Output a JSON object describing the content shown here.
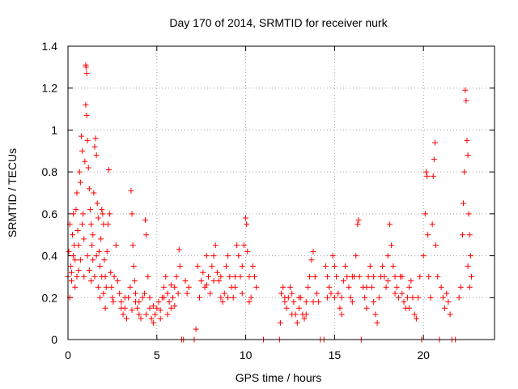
{
  "chart_data": {
    "type": "scatter",
    "title": "Day 170 of 2014, SRMTID for receiver nurk",
    "xlabel": "GPS time / hours",
    "ylabel": "SRMTID / TECUs",
    "xlim": [
      0,
      24
    ],
    "ylim": [
      0,
      1.4
    ],
    "xticks": [
      0,
      5,
      10,
      15,
      20
    ],
    "xtick_labels": [
      "0",
      "5",
      "10",
      "15",
      "20"
    ],
    "yticks": [
      0,
      0.2,
      0.4,
      0.6,
      0.8,
      1,
      1.2,
      1.4
    ],
    "ytick_labels": [
      "0",
      "0.2",
      "0.4",
      "0.6",
      "0.8",
      "1",
      "1.2",
      "1.4"
    ],
    "grid": true,
    "marker": "+",
    "series": [
      {
        "name": "SRMTID",
        "color": "#ff0000",
        "points": [
          [
            0.0,
            0.3
          ],
          [
            0.05,
            0.42
          ],
          [
            0.1,
            0.55
          ],
          [
            0.15,
            0.35
          ],
          [
            0.2,
            0.28
          ],
          [
            0.25,
            0.5
          ],
          [
            0.3,
            0.6
          ],
          [
            0.35,
            0.45
          ],
          [
            0.4,
            0.38
          ],
          [
            0.45,
            0.62
          ],
          [
            0.5,
            0.7
          ],
          [
            0.55,
            0.52
          ],
          [
            0.6,
            0.33
          ],
          [
            0.65,
            0.8
          ],
          [
            0.7,
            0.75
          ],
          [
            0.75,
            0.97
          ],
          [
            0.8,
            0.9
          ],
          [
            0.85,
            0.6
          ],
          [
            0.9,
            0.48
          ],
          [
            0.95,
            0.85
          ],
          [
            1.0,
            1.31
          ],
          [
            1.02,
            1.3
          ],
          [
            1.05,
            1.27
          ],
          [
            1.0,
            1.12
          ],
          [
            1.05,
            1.07
          ],
          [
            1.1,
            0.95
          ],
          [
            1.15,
            0.82
          ],
          [
            1.2,
            0.72
          ],
          [
            1.25,
            0.62
          ],
          [
            1.3,
            0.55
          ],
          [
            1.35,
            0.45
          ],
          [
            1.4,
            0.5
          ],
          [
            1.45,
            0.7
          ],
          [
            1.5,
            0.92
          ],
          [
            1.55,
            0.96
          ],
          [
            1.6,
            0.88
          ],
          [
            1.65,
            0.65
          ],
          [
            1.7,
            0.58
          ],
          [
            1.75,
            0.42
          ],
          [
            1.8,
            0.35
          ],
          [
            1.85,
            0.48
          ],
          [
            1.9,
            0.62
          ],
          [
            1.95,
            0.6
          ],
          [
            2.0,
            0.55
          ],
          [
            2.05,
            0.38
          ],
          [
            2.1,
            0.3
          ],
          [
            2.15,
            0.25
          ],
          [
            2.2,
            0.42
          ],
          [
            2.25,
            0.55
          ],
          [
            2.3,
            0.81
          ],
          [
            2.35,
            0.6
          ],
          [
            2.4,
            0.32
          ],
          [
            2.45,
            0.25
          ],
          [
            2.5,
            0.2
          ],
          [
            2.55,
            0.18
          ],
          [
            2.6,
            0.3
          ],
          [
            2.7,
            0.45
          ],
          [
            2.8,
            0.28
          ],
          [
            2.9,
            0.22
          ],
          [
            3.0,
            0.15
          ],
          [
            0.1,
            0.2
          ],
          [
            0.2,
            0.32
          ],
          [
            0.3,
            0.4
          ],
          [
            0.4,
            0.25
          ],
          [
            0.5,
            0.3
          ],
          [
            0.6,
            0.45
          ],
          [
            0.7,
            0.38
          ],
          [
            0.8,
            0.55
          ],
          [
            0.9,
            0.3
          ],
          [
            1.1,
            0.4
          ],
          [
            1.2,
            0.33
          ],
          [
            1.3,
            0.28
          ],
          [
            1.4,
            0.38
          ],
          [
            1.5,
            0.3
          ],
          [
            1.6,
            0.4
          ],
          [
            1.7,
            0.25
          ],
          [
            1.8,
            0.2
          ],
          [
            1.9,
            0.3
          ],
          [
            2.0,
            0.22
          ],
          [
            2.1,
            0.15
          ],
          [
            3.0,
            0.18
          ],
          [
            3.1,
            0.12
          ],
          [
            3.2,
            0.15
          ],
          [
            3.3,
            0.1
          ],
          [
            3.4,
            0.2
          ],
          [
            3.5,
            0.25
          ],
          [
            3.55,
            0.71
          ],
          [
            3.6,
            0.6
          ],
          [
            3.65,
            0.45
          ],
          [
            3.7,
            0.35
          ],
          [
            3.75,
            0.28
          ],
          [
            3.8,
            0.18
          ],
          [
            3.9,
            0.15
          ],
          [
            4.0,
            0.12
          ],
          [
            4.1,
            0.1
          ],
          [
            4.2,
            0.2
          ],
          [
            4.3,
            0.22
          ],
          [
            4.35,
            0.57
          ],
          [
            4.4,
            0.5
          ],
          [
            4.5,
            0.3
          ],
          [
            4.6,
            0.15
          ],
          [
            4.7,
            0.1
          ],
          [
            4.8,
            0.08
          ],
          [
            4.9,
            0.12
          ],
          [
            5.0,
            0.15
          ],
          [
            5.1,
            0.18
          ],
          [
            5.2,
            0.1
          ],
          [
            5.3,
            0.2
          ],
          [
            5.4,
            0.25
          ],
          [
            5.5,
            0.3
          ],
          [
            5.6,
            0.22
          ],
          [
            5.7,
            0.18
          ],
          [
            5.8,
            0.15
          ],
          [
            5.9,
            0.2
          ],
          [
            6.0,
            0.25
          ],
          [
            6.1,
            0.3
          ],
          [
            6.2,
            0.22
          ],
          [
            6.25,
            0.43
          ],
          [
            6.3,
            0.35
          ],
          [
            6.4,
            0.0
          ],
          [
            3.2,
            0.2
          ],
          [
            3.6,
            0.14
          ],
          [
            4.0,
            0.18
          ],
          [
            4.4,
            0.12
          ],
          [
            4.8,
            0.16
          ],
          [
            5.2,
            0.14
          ],
          [
            5.6,
            0.12
          ],
          [
            6.0,
            0.16
          ],
          [
            3.8,
            0.22
          ],
          [
            4.6,
            0.2
          ],
          [
            5.4,
            0.2
          ],
          [
            5.8,
            0.26
          ],
          [
            6.5,
            0.0
          ],
          [
            6.6,
            0.28
          ],
          [
            6.7,
            0.22
          ],
          [
            6.8,
            0.25
          ],
          [
            7.1,
            0.0
          ],
          [
            7.2,
            0.05
          ],
          [
            7.3,
            0.35
          ],
          [
            7.5,
            0.28
          ],
          [
            7.6,
            0.32
          ],
          [
            7.7,
            0.25
          ],
          [
            7.8,
            0.4
          ],
          [
            7.9,
            0.3
          ],
          [
            8.0,
            0.22
          ],
          [
            8.1,
            0.35
          ],
          [
            8.2,
            0.4
          ],
          [
            8.3,
            0.45
          ],
          [
            8.4,
            0.32
          ],
          [
            8.5,
            0.28
          ],
          [
            8.6,
            0.2
          ],
          [
            8.7,
            0.18
          ],
          [
            8.8,
            0.22
          ],
          [
            8.9,
            0.35
          ],
          [
            9.0,
            0.4
          ],
          [
            9.1,
            0.3
          ],
          [
            9.2,
            0.25
          ],
          [
            9.3,
            0.2
          ],
          [
            9.4,
            0.25
          ],
          [
            9.5,
            0.45
          ],
          [
            9.6,
            0.4
          ],
          [
            9.7,
            0.3
          ],
          [
            9.8,
            0.35
          ],
          [
            9.9,
            0.45
          ],
          [
            10.0,
            0.58
          ],
          [
            10.05,
            0.55
          ],
          [
            10.1,
            0.42
          ],
          [
            10.2,
            0.3
          ],
          [
            10.3,
            0.2
          ],
          [
            10.4,
            0.35
          ],
          [
            10.5,
            0.3
          ],
          [
            10.6,
            0.25
          ],
          [
            7.4,
            0.2
          ],
          [
            7.8,
            0.26
          ],
          [
            8.2,
            0.28
          ],
          [
            8.6,
            0.3
          ],
          [
            9.0,
            0.2
          ],
          [
            9.4,
            0.3
          ],
          [
            9.8,
            0.22
          ],
          [
            10.2,
            0.18
          ],
          [
            11.0,
            0.0
          ],
          [
            11.9,
            0.0
          ],
          [
            11.95,
            0.08
          ],
          [
            12.0,
            0.22
          ],
          [
            12.1,
            0.25
          ],
          [
            12.2,
            0.18
          ],
          [
            12.3,
            0.15
          ],
          [
            12.4,
            0.2
          ],
          [
            12.5,
            0.25
          ],
          [
            12.6,
            0.22
          ],
          [
            12.7,
            0.18
          ],
          [
            12.8,
            0.12
          ],
          [
            12.9,
            0.08
          ],
          [
            13.0,
            0.15
          ],
          [
            13.1,
            0.2
          ],
          [
            13.2,
            0.12
          ],
          [
            13.3,
            0.1
          ],
          [
            13.4,
            0.18
          ],
          [
            13.5,
            0.25
          ],
          [
            13.6,
            0.3
          ],
          [
            13.7,
            0.38
          ],
          [
            13.8,
            0.42
          ],
          [
            13.9,
            0.3
          ],
          [
            14.0,
            0.22
          ],
          [
            14.1,
            0.18
          ],
          [
            14.2,
            0.0
          ],
          [
            14.4,
            0.0
          ],
          [
            14.5,
            0.35
          ],
          [
            14.6,
            0.3
          ],
          [
            14.7,
            0.25
          ],
          [
            14.8,
            0.22
          ],
          [
            14.9,
            0.4
          ],
          [
            15.0,
            0.35
          ],
          [
            15.1,
            0.3
          ],
          [
            15.2,
            0.22
          ],
          [
            15.3,
            0.15
          ],
          [
            15.4,
            0.2
          ],
          [
            15.5,
            0.28
          ],
          [
            15.6,
            0.35
          ],
          [
            15.7,
            0.3
          ],
          [
            15.8,
            0.25
          ],
          [
            15.9,
            0.2
          ],
          [
            16.0,
            0.18
          ],
          [
            16.1,
            0.3
          ],
          [
            16.2,
            0.4
          ],
          [
            16.3,
            0.55
          ],
          [
            16.35,
            0.57
          ],
          [
            16.4,
            0.3
          ],
          [
            16.5,
            0.0
          ],
          [
            16.6,
            0.25
          ],
          [
            16.7,
            0.2
          ],
          [
            16.8,
            0.15
          ],
          [
            16.9,
            0.3
          ],
          [
            17.0,
            0.35
          ],
          [
            17.1,
            0.25
          ],
          [
            17.2,
            0.18
          ],
          [
            17.3,
            0.12
          ],
          [
            17.4,
            0.08
          ],
          [
            17.5,
            0.2
          ],
          [
            17.6,
            0.3
          ],
          [
            17.7,
            0.35
          ],
          [
            17.8,
            0.3
          ],
          [
            17.9,
            0.25
          ],
          [
            18.0,
            0.4
          ],
          [
            18.1,
            0.55
          ],
          [
            18.2,
            0.45
          ],
          [
            18.3,
            0.35
          ],
          [
            18.4,
            0.3
          ],
          [
            18.5,
            0.25
          ],
          [
            18.6,
            0.2
          ],
          [
            18.7,
            0.3
          ],
          [
            18.8,
            0.22
          ],
          [
            18.9,
            0.18
          ],
          [
            19.0,
            0.15
          ],
          [
            19.1,
            0.2
          ],
          [
            19.2,
            0.25
          ],
          [
            19.3,
            0.28
          ],
          [
            19.4,
            0.2
          ],
          [
            19.5,
            0.12
          ],
          [
            19.6,
            0.1
          ],
          [
            12.2,
            0.2
          ],
          [
            12.6,
            0.12
          ],
          [
            13.0,
            0.2
          ],
          [
            13.4,
            0.12
          ],
          [
            13.8,
            0.18
          ],
          [
            14.6,
            0.2
          ],
          [
            15.0,
            0.2
          ],
          [
            15.4,
            0.12
          ],
          [
            16.0,
            0.3
          ],
          [
            16.8,
            0.25
          ],
          [
            17.2,
            0.3
          ],
          [
            18.0,
            0.28
          ],
          [
            18.4,
            0.22
          ],
          [
            18.8,
            0.3
          ],
          [
            19.2,
            0.15
          ],
          [
            19.7,
            0.2
          ],
          [
            19.8,
            0.3
          ],
          [
            19.9,
            0.0
          ],
          [
            20.0,
            0.4
          ],
          [
            20.1,
            0.6
          ],
          [
            20.15,
            0.8
          ],
          [
            20.2,
            0.78
          ],
          [
            20.25,
            0.5
          ],
          [
            20.3,
            0.3
          ],
          [
            20.4,
            0.2
          ],
          [
            20.5,
            0.55
          ],
          [
            20.55,
            0.78
          ],
          [
            20.6,
            0.86
          ],
          [
            20.65,
            0.94
          ],
          [
            20.7,
            0.45
          ],
          [
            20.8,
            0.3
          ],
          [
            20.9,
            0.0
          ],
          [
            21.0,
            0.25
          ],
          [
            21.1,
            0.2
          ],
          [
            21.2,
            0.15
          ],
          [
            21.3,
            0.22
          ],
          [
            21.4,
            0.18
          ],
          [
            21.5,
            0.12
          ],
          [
            21.6,
            0.0
          ],
          [
            21.8,
            0.0
          ],
          [
            22.0,
            0.2
          ],
          [
            22.1,
            0.25
          ],
          [
            22.2,
            0.5
          ],
          [
            22.25,
            0.65
          ],
          [
            22.3,
            0.8
          ],
          [
            22.35,
            1.19
          ],
          [
            22.4,
            1.14
          ],
          [
            22.45,
            0.95
          ],
          [
            22.5,
            0.88
          ],
          [
            22.55,
            0.6
          ],
          [
            22.6,
            0.5
          ],
          [
            22.65,
            0.4
          ],
          [
            22.7,
            0.3
          ],
          [
            22.6,
            0.25
          ],
          [
            22.5,
            0.35
          ]
        ]
      }
    ]
  }
}
